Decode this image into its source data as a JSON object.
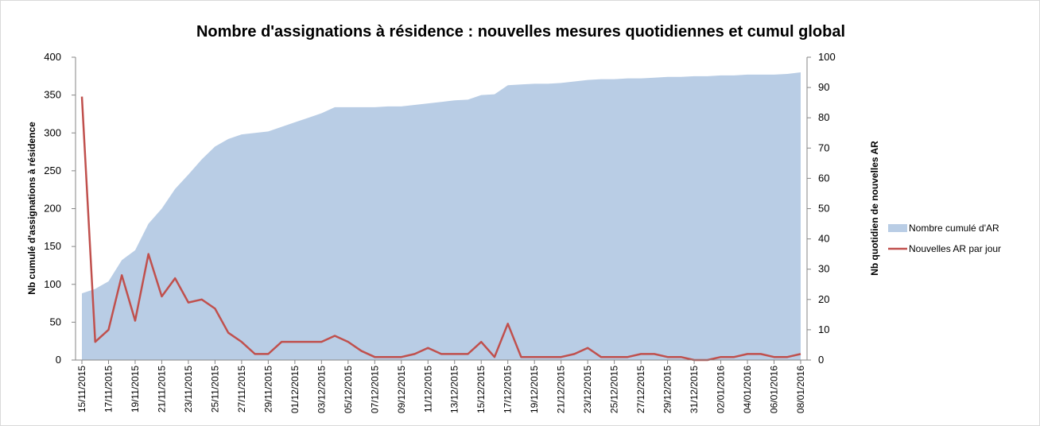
{
  "chart_data": {
    "type": "area_line",
    "title": "Nombre d'assignations à résidence : nouvelles mesures quotidiennes et cumul global",
    "ylabel": "Nb cumulé d'assignations à résidence",
    "y2label": "Nb quotidien de nouvelles AR",
    "categories": [
      "15/11/2015",
      null,
      "17/11/2015",
      null,
      "19/11/2015",
      null,
      "21/11/2015",
      null,
      "23/11/2015",
      null,
      "25/11/2015",
      null,
      "27/11/2015",
      null,
      "29/11/2015",
      null,
      "01/12/2015",
      null,
      "03/12/2015",
      null,
      "05/12/2015",
      null,
      "07/12/2015",
      null,
      "09/12/2015",
      null,
      "11/12/2015",
      null,
      "13/12/2015",
      null,
      "15/12/2015",
      null,
      "17/12/2015",
      null,
      "19/12/2015",
      null,
      "21/12/2015",
      null,
      "23/12/2015",
      null,
      "25/12/2015",
      null,
      "27/12/2015",
      null,
      "29/12/2015",
      null,
      "31/12/2015",
      null,
      "02/01/2016",
      null,
      "04/01/2016",
      null,
      "06/01/2016",
      null,
      "08/01/2016"
    ],
    "series": [
      {
        "name": "Nombre cumulé d'AR",
        "type": "area",
        "color": "#b9cde5",
        "axis": "y",
        "values": [
          88,
          94,
          104,
          132,
          145,
          180,
          200,
          226,
          245,
          265,
          282,
          292,
          298,
          300,
          302,
          308,
          314,
          320,
          326,
          334,
          334,
          334,
          334,
          335,
          335,
          337,
          339,
          341,
          343,
          344,
          350,
          351,
          363,
          364,
          365,
          365,
          366,
          368,
          370,
          371,
          371,
          372,
          372,
          373,
          374,
          374,
          375,
          375,
          376,
          376,
          377,
          377,
          377,
          378,
          380
        ]
      },
      {
        "name": "Nouvelles AR par jour",
        "type": "line",
        "color": "#c0504d",
        "axis": "y2",
        "values": [
          87,
          6,
          10,
          28,
          13,
          35,
          21,
          27,
          19,
          20,
          17,
          9,
          6,
          2,
          2,
          6,
          6,
          6,
          6,
          8,
          6,
          3,
          1,
          1,
          1,
          2,
          4,
          2,
          2,
          2,
          6,
          1,
          12,
          1,
          1,
          1,
          1,
          2,
          4,
          1,
          1,
          1,
          2,
          2,
          1,
          1,
          0,
          0,
          1,
          1,
          2,
          2,
          1,
          1,
          2
        ]
      }
    ],
    "ylim": [
      0,
      400
    ],
    "yticks": [
      0,
      50,
      100,
      150,
      200,
      250,
      300,
      350,
      400
    ],
    "y2lim": [
      0,
      100
    ],
    "y2ticks": [
      0,
      10,
      20,
      30,
      40,
      50,
      60,
      70,
      80,
      90,
      100
    ],
    "legend": "right"
  }
}
